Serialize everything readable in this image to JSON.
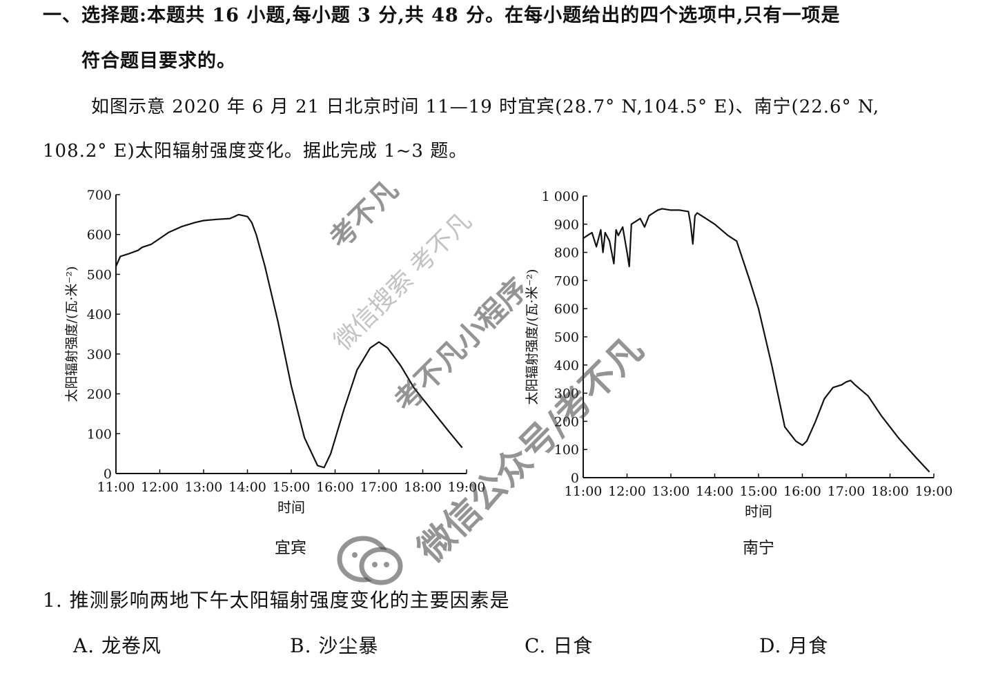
{
  "section": {
    "heading_line1": "一、选择题:本题共 16 小题,每小题 3 分,共 48 分。在每小题给出的四个选项中,只有一项是",
    "heading_line2": "符合题目要求的。"
  },
  "intro": {
    "line1": "如图示意 2020 年 6 月 21 日北京时间 11—19 时宜宾(28.7° N,104.5° E)、南宁(22.6° N,",
    "line2": "108.2° E)太阳辐射强度变化。据此完成 1~3 题。"
  },
  "chart_data": [
    {
      "type": "line",
      "caption": "宜宾",
      "xlabel": "时间",
      "ylabel": "太阳辐射强度/(瓦·米⁻²)",
      "x_ticks": [
        "11:00",
        "12:00",
        "13:00",
        "14:00",
        "15:00",
        "16:00",
        "17:00",
        "18:00",
        "19:00"
      ],
      "y_ticks": [
        "0",
        "100",
        "200",
        "300",
        "400",
        "500",
        "600",
        "700"
      ],
      "xlim": [
        11,
        19
      ],
      "ylim": [
        0,
        700
      ],
      "grid": false,
      "series": [
        {
          "x": [
            11.0,
            11.1,
            11.3,
            11.5,
            11.6,
            11.8,
            12.0,
            12.2,
            12.5,
            12.8,
            13.0,
            13.3,
            13.6,
            13.8,
            14.0,
            14.1,
            14.2,
            14.4,
            14.7,
            15.0,
            15.3,
            15.6,
            15.75,
            15.9,
            16.2,
            16.5,
            16.8,
            17.0,
            17.2,
            17.5,
            17.8,
            18.2,
            18.6,
            18.9
          ],
          "y": [
            520,
            545,
            552,
            560,
            568,
            575,
            590,
            605,
            620,
            630,
            635,
            638,
            640,
            650,
            645,
            630,
            600,
            520,
            380,
            220,
            90,
            20,
            15,
            50,
            160,
            260,
            315,
            330,
            315,
            270,
            215,
            160,
            105,
            65
          ]
        }
      ]
    },
    {
      "type": "line",
      "caption": "南宁",
      "xlabel": "时间",
      "ylabel": "太阳辐射强度/(瓦·米⁻²)",
      "x_ticks": [
        "11:00",
        "12:00",
        "13:00",
        "14:00",
        "15:00",
        "16:00",
        "17:00",
        "18:00",
        "19:00"
      ],
      "y_ticks": [
        "0",
        "100",
        "200",
        "300",
        "400",
        "500",
        "600",
        "700",
        "800",
        "900",
        "1 000"
      ],
      "xlim": [
        11,
        19
      ],
      "ylim": [
        0,
        1000
      ],
      "grid": false,
      "series": [
        {
          "x": [
            11.0,
            11.1,
            11.2,
            11.3,
            11.4,
            11.45,
            11.5,
            11.6,
            11.7,
            11.75,
            11.8,
            11.9,
            12.0,
            12.05,
            12.1,
            12.2,
            12.3,
            12.4,
            12.5,
            12.6,
            12.7,
            12.8,
            13.0,
            13.2,
            13.4,
            13.45,
            13.5,
            13.55,
            13.6,
            13.8,
            14.0,
            14.3,
            14.5,
            14.8,
            15.0,
            15.3,
            15.6,
            15.7,
            15.85,
            16.0,
            16.1,
            16.3,
            16.5,
            16.7,
            16.9,
            17.0,
            17.1,
            17.2,
            17.5,
            17.8,
            18.2,
            18.6,
            18.9
          ],
          "y": [
            850,
            860,
            870,
            820,
            880,
            800,
            870,
            840,
            760,
            880,
            860,
            890,
            800,
            750,
            900,
            910,
            920,
            890,
            930,
            940,
            950,
            955,
            950,
            950,
            945,
            900,
            830,
            930,
            940,
            920,
            900,
            860,
            840,
            700,
            600,
            400,
            180,
            160,
            130,
            115,
            130,
            200,
            280,
            320,
            330,
            340,
            345,
            330,
            290,
            220,
            140,
            70,
            20
          ]
        }
      ]
    }
  ],
  "question": {
    "stem": "1. 推测影响两地下午太阳辐射强度变化的主要因素是",
    "options": [
      "A. 龙卷风",
      "B. 沙尘暴",
      "C. 日食",
      "D. 月食"
    ]
  },
  "watermark": {
    "text_1": "考不凡",
    "text_2": "微信搜索 考不凡",
    "text_3": "考不凡小程序",
    "text_4": "考不凡",
    "text_5": "微信公众号/考不凡"
  }
}
